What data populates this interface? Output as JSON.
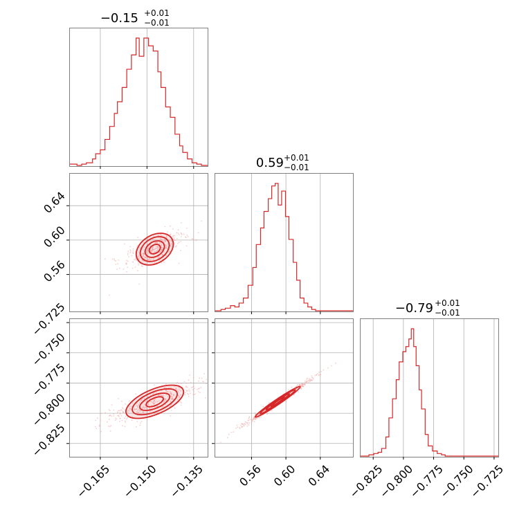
{
  "colors": {
    "series": "#d62728",
    "scatter": "#f0a6a6",
    "grid": "#b0b0b0",
    "frame": "#808080"
  },
  "chart_data": {
    "type": "corner",
    "grid": true,
    "parameters": [
      {
        "title_main": "−0.15",
        "title_plus": "+0.01",
        "title_minus": "−0.01",
        "median": -0.15,
        "range": [
          -0.175,
          -0.1305
        ],
        "ticks": [
          -0.165,
          -0.15,
          -0.135
        ],
        "tick_labels": [
          "−0.165",
          "−0.150",
          "−0.135"
        ],
        "hist_bins": [
          -0.1745,
          -0.1725,
          -0.171,
          -0.1695,
          -0.1675,
          -0.1665,
          -0.165,
          -0.1635,
          -0.162,
          -0.1605,
          -0.1595,
          -0.158,
          -0.1565,
          -0.155,
          -0.1535,
          -0.1525,
          -0.151,
          -0.1495,
          -0.148,
          -0.1465,
          -0.1455,
          -0.144,
          -0.1425,
          -0.141,
          -0.1395,
          -0.1385,
          -0.137,
          -0.1355,
          -0.134,
          -0.1325,
          -0.131
        ],
        "hist_counts": [
          0.01,
          0.0,
          0.01,
          0.02,
          0.05,
          0.09,
          0.12,
          0.2,
          0.3,
          0.4,
          0.49,
          0.6,
          0.74,
          0.85,
          0.98,
          0.84,
          0.98,
          0.92,
          0.88,
          0.72,
          0.6,
          0.45,
          0.37,
          0.24,
          0.15,
          0.1,
          0.05,
          0.02,
          0.01,
          0.0
        ]
      },
      {
        "title_main": "0.59",
        "title_plus": "+0.01",
        "title_minus": "−0.01",
        "median": 0.59,
        "range": [
          0.517,
          0.678
        ],
        "ticks": [
          0.56,
          0.6,
          0.64
        ],
        "tick_labels": [
          "0.56",
          "0.60",
          "0.64"
        ],
        "hist_bins": [
          0.5185,
          0.5245,
          0.5295,
          0.5355,
          0.5405,
          0.5455,
          0.5505,
          0.556,
          0.5615,
          0.5655,
          0.5705,
          0.5745,
          0.5795,
          0.5835,
          0.5875,
          0.591,
          0.595,
          0.5995,
          0.6035,
          0.6085,
          0.6125,
          0.6165,
          0.621,
          0.6255,
          0.63,
          0.6345,
          0.6415
        ],
        "hist_counts": [
          0.0,
          0.01,
          0.02,
          0.04,
          0.03,
          0.06,
          0.1,
          0.2,
          0.34,
          0.52,
          0.65,
          0.78,
          0.88,
          0.98,
          1.0,
          0.83,
          0.94,
          0.74,
          0.56,
          0.38,
          0.24,
          0.1,
          0.06,
          0.03,
          0.01,
          0.0
        ]
      },
      {
        "title_main": "−0.79",
        "title_plus": "+0.01",
        "title_minus": "−0.01",
        "median": -0.79,
        "range": [
          -0.836,
          -0.7215
        ],
        "ticks": [
          -0.825,
          -0.8,
          -0.775,
          -0.75,
          -0.725
        ],
        "tick_labels": [
          "−0.825",
          "−0.800",
          "−0.775",
          "−0.750",
          "−0.725"
        ],
        "hist_bins": [
          -0.8325,
          -0.8285,
          -0.8245,
          -0.821,
          -0.818,
          -0.8145,
          -0.812,
          -0.809,
          -0.806,
          -0.8035,
          -0.8005,
          -0.798,
          -0.7955,
          -0.7935,
          -0.7915,
          -0.7895,
          -0.787,
          -0.785,
          -0.782,
          -0.7795,
          -0.776,
          -0.772,
          -0.7685,
          -0.7655,
          -0.7625
        ],
        "hist_counts": [
          0.0,
          0.01,
          0.02,
          0.03,
          0.06,
          0.15,
          0.3,
          0.45,
          0.6,
          0.74,
          0.82,
          0.86,
          0.92,
          1.0,
          0.86,
          0.71,
          0.52,
          0.37,
          0.17,
          0.08,
          0.04,
          0.02,
          0.01,
          0.0
        ]
      }
    ],
    "contour_levels": [
      0.6,
      0.4,
      0.22,
      0.1
    ],
    "pairs": [
      {
        "x": 0,
        "y": 1,
        "center": [
          -0.1475,
          0.5895
        ],
        "slope": 2.26,
        "major_half": 0.0135,
        "minor_half": 0.0028,
        "scatter_spread": 1.55
      },
      {
        "x": 0,
        "y": 2,
        "center": [
          -0.1475,
          -0.7905
        ],
        "slope": 1.09,
        "major_half": 0.0135,
        "minor_half": 0.0025,
        "scatter_spread": 1.55
      },
      {
        "x": 1,
        "y": 2,
        "center": [
          0.5905,
          -0.7905
        ],
        "slope": 0.48,
        "major_half": 0.029,
        "minor_half": 0.0019,
        "scatter_spread": 1.6
      }
    ]
  }
}
